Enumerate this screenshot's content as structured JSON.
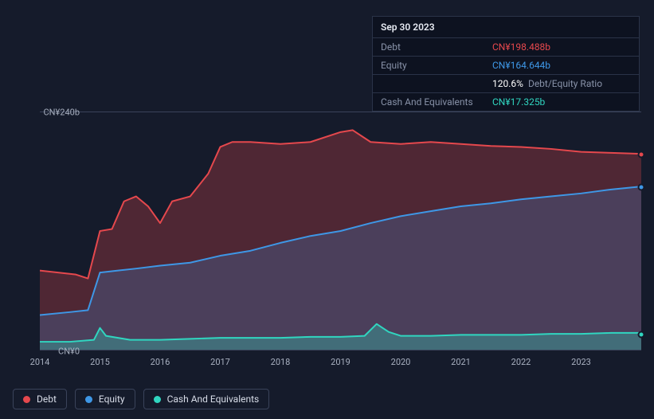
{
  "tooltip": {
    "title": "Sep 30 2023",
    "rows": [
      {
        "label": "Debt",
        "value": "CN¥198.488b",
        "color": "#e5484d"
      },
      {
        "label": "Equity",
        "value": "CN¥164.644b",
        "color": "#3e97e6"
      },
      {
        "label": "",
        "value": "120.6%",
        "extra": "Debt/Equity Ratio",
        "color": "#ffffff"
      },
      {
        "label": "Cash And Equivalents",
        "value": "CN¥17.325b",
        "color": "#30d6c0"
      }
    ]
  },
  "chart": {
    "type": "area",
    "background_color": "#151b2b",
    "grid_color": "#3a435a",
    "y_axis": {
      "min": 0,
      "max": 240,
      "ticks": [
        {
          "v": 240,
          "label": "CN¥240b"
        },
        {
          "v": 0,
          "label": "CN¥0"
        }
      ]
    },
    "x_axis": {
      "min": 2014,
      "max": 2024,
      "ticks": [
        2014,
        2015,
        2016,
        2017,
        2018,
        2019,
        2020,
        2021,
        2022,
        2023
      ]
    },
    "series": [
      {
        "name": "Debt",
        "color": "#e5484d",
        "fill_opacity": 0.28,
        "line_width": 2,
        "data": [
          [
            2014.0,
            80
          ],
          [
            2014.3,
            78
          ],
          [
            2014.6,
            76
          ],
          [
            2014.8,
            72
          ],
          [
            2015.0,
            120
          ],
          [
            2015.2,
            122
          ],
          [
            2015.4,
            150
          ],
          [
            2015.6,
            155
          ],
          [
            2015.8,
            145
          ],
          [
            2016.0,
            128
          ],
          [
            2016.2,
            150
          ],
          [
            2016.5,
            155
          ],
          [
            2016.8,
            178
          ],
          [
            2017.0,
            205
          ],
          [
            2017.2,
            210
          ],
          [
            2017.5,
            210
          ],
          [
            2018.0,
            208
          ],
          [
            2018.5,
            210
          ],
          [
            2019.0,
            220
          ],
          [
            2019.2,
            222
          ],
          [
            2019.5,
            210
          ],
          [
            2020.0,
            208
          ],
          [
            2020.5,
            210
          ],
          [
            2021.0,
            208
          ],
          [
            2021.5,
            206
          ],
          [
            2022.0,
            205
          ],
          [
            2022.5,
            203
          ],
          [
            2023.0,
            200
          ],
          [
            2023.5,
            199
          ],
          [
            2024.0,
            198
          ]
        ]
      },
      {
        "name": "Equity",
        "color": "#3e97e6",
        "fill_opacity": 0.22,
        "line_width": 2,
        "data": [
          [
            2014.0,
            35
          ],
          [
            2014.5,
            38
          ],
          [
            2014.8,
            40
          ],
          [
            2015.0,
            78
          ],
          [
            2015.3,
            80
          ],
          [
            2015.6,
            82
          ],
          [
            2016.0,
            85
          ],
          [
            2016.5,
            88
          ],
          [
            2017.0,
            95
          ],
          [
            2017.5,
            100
          ],
          [
            2018.0,
            108
          ],
          [
            2018.5,
            115
          ],
          [
            2019.0,
            120
          ],
          [
            2019.5,
            128
          ],
          [
            2020.0,
            135
          ],
          [
            2020.5,
            140
          ],
          [
            2021.0,
            145
          ],
          [
            2021.5,
            148
          ],
          [
            2022.0,
            152
          ],
          [
            2022.5,
            155
          ],
          [
            2023.0,
            158
          ],
          [
            2023.5,
            162
          ],
          [
            2024.0,
            165
          ]
        ]
      },
      {
        "name": "Cash And Equivalents",
        "color": "#30d6c0",
        "fill_opacity": 0.3,
        "line_width": 2,
        "data": [
          [
            2014.0,
            8
          ],
          [
            2014.5,
            8
          ],
          [
            2014.9,
            10
          ],
          [
            2015.0,
            22
          ],
          [
            2015.1,
            14
          ],
          [
            2015.5,
            10
          ],
          [
            2016.0,
            10
          ],
          [
            2016.5,
            11
          ],
          [
            2017.0,
            12
          ],
          [
            2017.5,
            12
          ],
          [
            2018.0,
            12
          ],
          [
            2018.5,
            13
          ],
          [
            2019.0,
            13
          ],
          [
            2019.4,
            14
          ],
          [
            2019.6,
            26
          ],
          [
            2019.8,
            18
          ],
          [
            2020.0,
            14
          ],
          [
            2020.5,
            14
          ],
          [
            2021.0,
            15
          ],
          [
            2021.5,
            15
          ],
          [
            2022.0,
            15
          ],
          [
            2022.5,
            16
          ],
          [
            2023.0,
            16
          ],
          [
            2023.5,
            17
          ],
          [
            2024.0,
            17
          ]
        ]
      }
    ]
  },
  "legend": [
    {
      "label": "Debt",
      "color": "#e5484d"
    },
    {
      "label": "Equity",
      "color": "#3e97e6"
    },
    {
      "label": "Cash And Equivalents",
      "color": "#30d6c0"
    }
  ]
}
